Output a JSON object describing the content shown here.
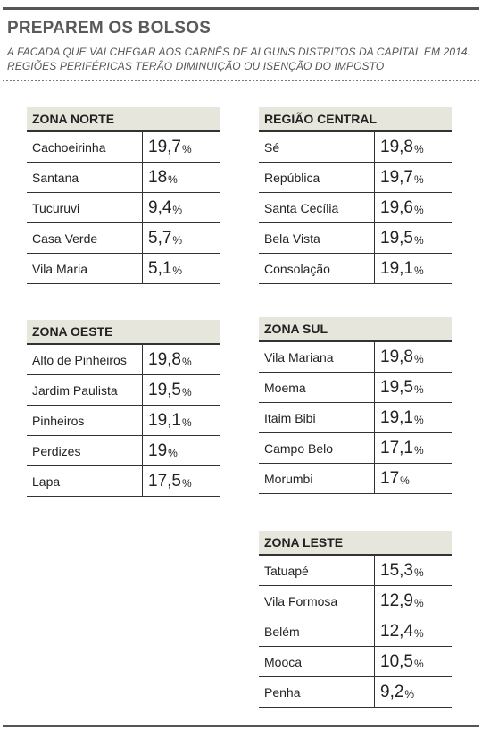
{
  "header": {
    "title": "PREPAREM OS BOLSOS",
    "subtitle_line1": "A FACADA QUE VAI CHEGAR AOS CARNÊS DE ALGUNS DISTRITOS DA CAPITAL EM 2014.",
    "subtitle_line2": "REGIÕES PERIFÉRICAS TERÃO DIMINUIÇÃO OU ISENÇÃO DO IMPOSTO"
  },
  "percent_symbol": "%",
  "zones": {
    "norte": {
      "title": "ZONA NORTE",
      "rows": [
        {
          "name": "Cachoeirinha",
          "value": "19,7"
        },
        {
          "name": "Santana",
          "value": "18"
        },
        {
          "name": "Tucuruvi",
          "value": "9,4"
        },
        {
          "name": "Casa Verde",
          "value": "5,7"
        },
        {
          "name": "Vila Maria",
          "value": "5,1"
        }
      ]
    },
    "central": {
      "title": "REGIÃO CENTRAL",
      "rows": [
        {
          "name": "Sé",
          "value": "19,8"
        },
        {
          "name": "República",
          "value": "19,7"
        },
        {
          "name": "Santa Cecília",
          "value": "19,6"
        },
        {
          "name": "Bela Vista",
          "value": "19,5"
        },
        {
          "name": "Consolação",
          "value": "19,1"
        }
      ]
    },
    "oeste": {
      "title": "ZONA OESTE",
      "rows": [
        {
          "name": "Alto de Pinheiros",
          "value": "19,8"
        },
        {
          "name": "Jardim Paulista",
          "value": "19,5"
        },
        {
          "name": "Pinheiros",
          "value": "19,1"
        },
        {
          "name": "Perdizes",
          "value": "19"
        },
        {
          "name": "Lapa",
          "value": "17,5"
        }
      ]
    },
    "sul": {
      "title": "ZONA SUL",
      "rows": [
        {
          "name": "Vila Mariana",
          "value": "19,8"
        },
        {
          "name": "Moema",
          "value": "19,5"
        },
        {
          "name": "Itaim Bibi",
          "value": "19,1"
        },
        {
          "name": "Campo Belo",
          "value": "17,1"
        },
        {
          "name": "Morumbi",
          "value": "17"
        }
      ]
    },
    "leste": {
      "title": "ZONA LESTE",
      "rows": [
        {
          "name": "Tatuapé",
          "value": "15,3"
        },
        {
          "name": "Vila Formosa",
          "value": "12,9"
        },
        {
          "name": "Belém",
          "value": "12,4"
        },
        {
          "name": "Mooca",
          "value": "10,5"
        },
        {
          "name": "Penha",
          "value": "9,2"
        }
      ]
    }
  }
}
